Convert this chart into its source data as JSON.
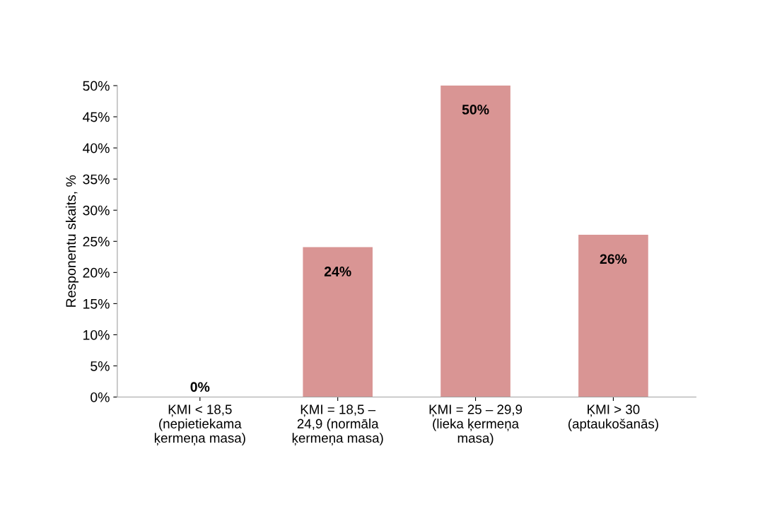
{
  "chart_data": {
    "type": "bar",
    "categories": [
      "ĶMI < 18,5\n(nepietiekama\nķermeņa masa)",
      "ĶMI = 18,5 –\n24,9 (normāla\nķermeņa masa)",
      "ĶMI = 25 – 29,9\n(lieka ķermeņa\nmasa)",
      "ĶMI > 30\n(aptaukošanās)"
    ],
    "values": [
      0,
      24,
      50,
      26
    ],
    "value_labels": [
      "0%",
      "24%",
      "50%",
      "26%"
    ],
    "color": "#d99594",
    "ylabel": "Responentu skaits, %",
    "ylim": [
      0,
      50
    ],
    "yticks": [
      {
        "value": 0,
        "label": "0%"
      },
      {
        "value": 5,
        "label": "5%"
      },
      {
        "value": 10,
        "label": "10%"
      },
      {
        "value": 15,
        "label": "15%"
      },
      {
        "value": 20,
        "label": "20%"
      },
      {
        "value": 25,
        "label": "25%"
      },
      {
        "value": 30,
        "label": "30%"
      },
      {
        "value": 35,
        "label": "35%"
      },
      {
        "value": 40,
        "label": "40%"
      },
      {
        "value": 45,
        "label": "45%"
      },
      {
        "value": 50,
        "label": "50%"
      }
    ],
    "grid": false,
    "legend": false
  }
}
